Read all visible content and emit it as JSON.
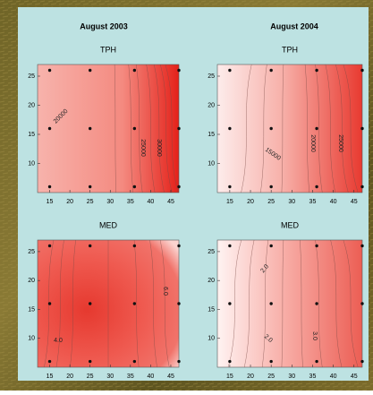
{
  "columns": [
    "August 2003",
    "August 2004"
  ],
  "panels": [
    {
      "title": "TPH",
      "xticks": [
        15,
        20,
        25,
        30,
        35,
        40,
        45
      ],
      "yticks": [
        10,
        15,
        20,
        25
      ],
      "contour_labels": [
        "20000",
        "25000",
        "30000"
      ]
    },
    {
      "title": "TPH",
      "xticks": [
        15,
        20,
        25,
        30,
        35,
        40,
        45
      ],
      "yticks": [
        10,
        15,
        20,
        25
      ],
      "contour_labels": [
        "15000",
        "20000",
        "25000"
      ]
    },
    {
      "title": "MED",
      "xticks": [
        15,
        20,
        25,
        30,
        35,
        40,
        45
      ],
      "yticks": [
        10,
        15,
        20,
        25
      ],
      "contour_labels": [
        "4.0",
        "6.0"
      ]
    },
    {
      "title": "MED",
      "xticks": [
        15,
        20,
        25,
        30,
        35,
        40,
        45
      ],
      "yticks": [
        10,
        15,
        20,
        25
      ],
      "contour_labels": [
        "2.0",
        "2.0",
        "3.0"
      ]
    }
  ]
}
